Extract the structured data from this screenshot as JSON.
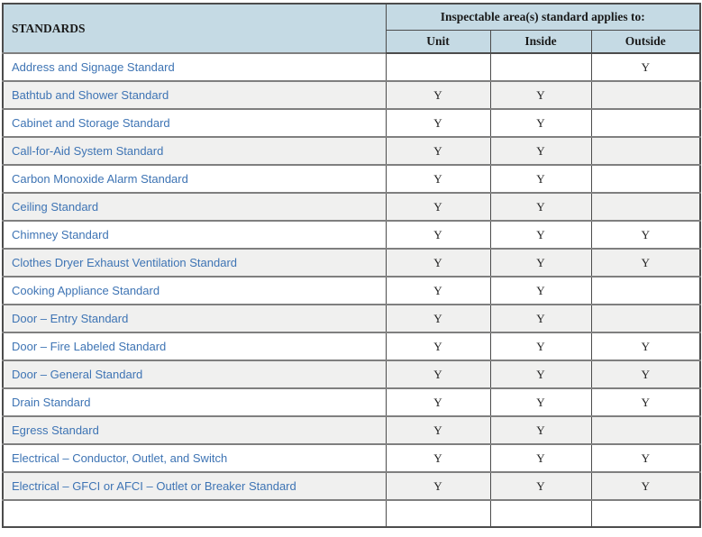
{
  "table": {
    "header": {
      "standards_label": "STANDARDS",
      "group_label": "Inspectable area(s) standard applies to:",
      "columns": [
        "Unit",
        "Inside",
        "Outside"
      ]
    },
    "area_keys": [
      "unit",
      "inside",
      "outside"
    ],
    "rows": [
      {
        "standard": "Address and Signage Standard",
        "areas": [
          "",
          "",
          "Y"
        ]
      },
      {
        "standard": "Bathtub and Shower Standard",
        "areas": [
          "Y",
          "Y",
          ""
        ]
      },
      {
        "standard": "Cabinet and Storage Standard",
        "areas": [
          "Y",
          "Y",
          ""
        ]
      },
      {
        "standard": "Call-for-Aid System Standard",
        "areas": [
          "Y",
          "Y",
          ""
        ]
      },
      {
        "standard": "Carbon Monoxide Alarm Standard",
        "areas": [
          "Y",
          "Y",
          ""
        ]
      },
      {
        "standard": "Ceiling Standard",
        "areas": [
          "Y",
          "Y",
          ""
        ]
      },
      {
        "standard": "Chimney Standard",
        "areas": [
          "Y",
          "Y",
          "Y"
        ]
      },
      {
        "standard": "Clothes Dryer Exhaust Ventilation Standard",
        "areas": [
          "Y",
          "Y",
          "Y"
        ]
      },
      {
        "standard": "Cooking Appliance Standard",
        "areas": [
          "Y",
          "Y",
          ""
        ]
      },
      {
        "standard": "Door – Entry Standard",
        "areas": [
          "Y",
          "Y",
          ""
        ]
      },
      {
        "standard": "Door – Fire Labeled Standard",
        "areas": [
          "Y",
          "Y",
          "Y"
        ]
      },
      {
        "standard": "Door – General Standard",
        "areas": [
          "Y",
          "Y",
          "Y"
        ]
      },
      {
        "standard": "Drain Standard",
        "areas": [
          "Y",
          "Y",
          "Y"
        ]
      },
      {
        "standard": "Egress Standard",
        "areas": [
          "Y",
          "Y",
          ""
        ]
      },
      {
        "standard": "Electrical – Conductor, Outlet, and Switch",
        "areas": [
          "Y",
          "Y",
          "Y"
        ]
      },
      {
        "standard": "Electrical – GFCI or AFCI – Outlet or Breaker Standard",
        "areas": [
          "Y",
          "Y",
          "Y"
        ]
      }
    ],
    "partial_row_at_bottom": true
  },
  "colors": {
    "header_bg": "#c5dae4",
    "stripe_bg": "#f0f0ef",
    "link_blue": "#3e74b4",
    "border_dark": "#4c4c4c",
    "border_row": "#7f7f7f"
  }
}
